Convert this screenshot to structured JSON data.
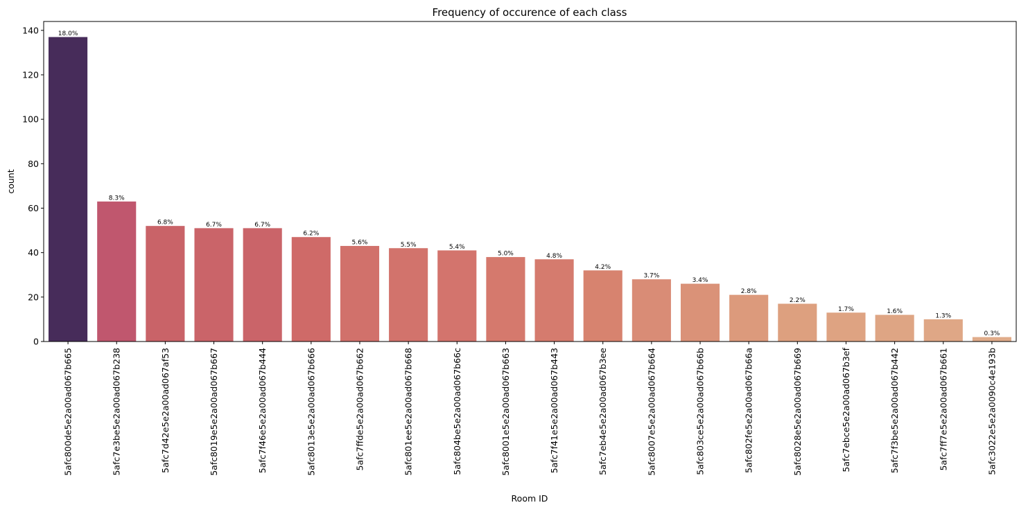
{
  "chart_data": {
    "type": "bar",
    "title": "Frequency of occurence of each class",
    "xlabel": "Room ID",
    "ylabel": "count",
    "ylim": [
      0,
      144
    ],
    "yticks": [
      "0",
      "20",
      "40",
      "60",
      "80",
      "100",
      "120",
      "140"
    ],
    "ytick_values": [
      0,
      20,
      40,
      60,
      80,
      100,
      120,
      140
    ],
    "grid": false,
    "legend": "none",
    "categories": [
      "5afc800de5e2a00ad067b665",
      "5afc7e3be5e2a00ad067b238",
      "5afc7d42e5e2a00ad067af53",
      "5afc8019e5e2a00ad067b667",
      "5afc7f46e5e2a00ad067b444",
      "5afc8013e5e2a00ad067b666",
      "5afc7ffde5e2a00ad067b662",
      "5afc801ee5e2a00ad067b668",
      "5afc804be5e2a00ad067b66c",
      "5afc8001e5e2a00ad067b663",
      "5afc7f41e5e2a00ad067b443",
      "5afc7eb4e5e2a00ad067b3ee",
      "5afc8007e5e2a00ad067b664",
      "5afc803ce5e2a00ad067b66b",
      "5afc802fe5e2a00ad067b66a",
      "5afc8028e5e2a00ad067b669",
      "5afc7ebce5e2a00ad067b3ef",
      "5afc7f3be5e2a00ad067b442",
      "5afc7ff7e5e2a00ad067b661",
      "5afc3022e5e2a0090c4e193b"
    ],
    "values": [
      137,
      63,
      52,
      51,
      51,
      47,
      43,
      42,
      41,
      38,
      37,
      32,
      28,
      26,
      21,
      17,
      13,
      12,
      10,
      2
    ],
    "labels": [
      "18.0%",
      "8.3%",
      "6.8%",
      "6.7%",
      "6.7%",
      "6.2%",
      "5.6%",
      "5.5%",
      "5.4%",
      "5.0%",
      "4.8%",
      "4.2%",
      "3.7%",
      "3.4%",
      "2.8%",
      "2.2%",
      "1.7%",
      "1.6%",
      "1.3%",
      "0.3%"
    ],
    "colors": [
      "#472c5a",
      "#c0576e",
      "#c96368",
      "#ca6469",
      "#ca6469",
      "#cf6a68",
      "#d1716b",
      "#d2736c",
      "#d3746d",
      "#d5796d",
      "#d57b6e",
      "#d7836f",
      "#d98c76",
      "#da9278",
      "#dc9a7c",
      "#dda07f",
      "#dea382",
      "#dea584",
      "#dfa786",
      "#e0ac8a"
    ]
  }
}
